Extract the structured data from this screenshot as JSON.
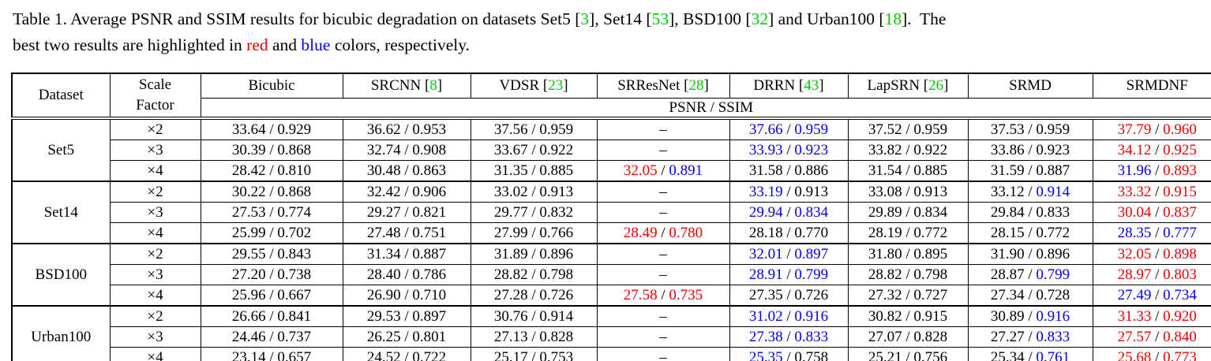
{
  "colors": {
    "text": "#000000",
    "best": "#ee0000",
    "second_best": "#0000ee",
    "citation_green": "#00cc00"
  },
  "caption": {
    "lines": [
      [
        {
          "text": "Table 1. Average PSNR and SSIM results for bicubic degradation on datasets Set5 [",
          "color": "black"
        },
        {
          "text": "3",
          "color": "green"
        },
        {
          "text": "], Set14 [",
          "color": "black"
        },
        {
          "text": "53",
          "color": "green"
        },
        {
          "text": "], BSD100 [",
          "color": "black"
        },
        {
          "text": "32",
          "color": "green"
        },
        {
          "text": "] and Urban100 [",
          "color": "black"
        },
        {
          "text": "18",
          "color": "green"
        },
        {
          "text": "].  The",
          "color": "black"
        }
      ],
      [
        {
          "text": "best two results are highlighted in ",
          "color": "black"
        },
        {
          "text": "red",
          "color": "red"
        },
        {
          "text": " and ",
          "color": "black"
        },
        {
          "text": "blue",
          "color": "blue"
        },
        {
          "text": " colors, respectively.",
          "color": "black"
        }
      ]
    ]
  },
  "table": {
    "corner_header": "Dataset",
    "scale_header_line1": "Scale",
    "scale_header_line2": "Factor",
    "metric_header": "PSNR / SSIM",
    "missing_value": "–",
    "method_columns": [
      {
        "name": "Bicubic",
        "cite": null
      },
      {
        "name": "SRCNN",
        "cite": "8"
      },
      {
        "name": "VDSR",
        "cite": "23"
      },
      {
        "name": "SRResNet",
        "cite": "28"
      },
      {
        "name": "DRRN",
        "cite": "43"
      },
      {
        "name": "LapSRN",
        "cite": "26"
      },
      {
        "name": "SRMD",
        "cite": null
      },
      {
        "name": "SRMDNF",
        "cite": null
      }
    ],
    "groups": [
      {
        "dataset": "Set5",
        "rows": [
          {
            "scale": "×2",
            "cells": [
              {
                "p": "33.64",
                "s": "0.929",
                "pc": "k",
                "sc": "k"
              },
              {
                "p": "36.62",
                "s": "0.953",
                "pc": "k",
                "sc": "k"
              },
              {
                "p": "37.56",
                "s": "0.959",
                "pc": "k",
                "sc": "k"
              },
              {
                "p": null,
                "s": null
              },
              {
                "p": "37.66",
                "s": "0.959",
                "pc": "b",
                "sc": "b"
              },
              {
                "p": "37.52",
                "s": "0.959",
                "pc": "k",
                "sc": "k"
              },
              {
                "p": "37.53",
                "s": "0.959",
                "pc": "k",
                "sc": "k"
              },
              {
                "p": "37.79",
                "s": "0.960",
                "pc": "r",
                "sc": "r"
              }
            ]
          },
          {
            "scale": "×3",
            "cells": [
              {
                "p": "30.39",
                "s": "0.868",
                "pc": "k",
                "sc": "k"
              },
              {
                "p": "32.74",
                "s": "0.908",
                "pc": "k",
                "sc": "k"
              },
              {
                "p": "33.67",
                "s": "0.922",
                "pc": "k",
                "sc": "k"
              },
              {
                "p": null,
                "s": null
              },
              {
                "p": "33.93",
                "s": "0.923",
                "pc": "b",
                "sc": "b"
              },
              {
                "p": "33.82",
                "s": "0.922",
                "pc": "k",
                "sc": "k"
              },
              {
                "p": "33.86",
                "s": "0.923",
                "pc": "k",
                "sc": "k"
              },
              {
                "p": "34.12",
                "s": "0.925",
                "pc": "r",
                "sc": "r"
              }
            ]
          },
          {
            "scale": "×4",
            "cells": [
              {
                "p": "28.42",
                "s": "0.810",
                "pc": "k",
                "sc": "k"
              },
              {
                "p": "30.48",
                "s": "0.863",
                "pc": "k",
                "sc": "k"
              },
              {
                "p": "31.35",
                "s": "0.885",
                "pc": "k",
                "sc": "k"
              },
              {
                "p": "32.05",
                "s": "0.891",
                "pc": "r",
                "sc": "b"
              },
              {
                "p": "31.58",
                "s": "0.886",
                "pc": "k",
                "sc": "k"
              },
              {
                "p": "31.54",
                "s": "0.885",
                "pc": "k",
                "sc": "k"
              },
              {
                "p": "31.59",
                "s": "0.887",
                "pc": "k",
                "sc": "k"
              },
              {
                "p": "31.96",
                "s": "0.893",
                "pc": "b",
                "sc": "r"
              }
            ]
          }
        ]
      },
      {
        "dataset": "Set14",
        "rows": [
          {
            "scale": "×2",
            "cells": [
              {
                "p": "30.22",
                "s": "0.868",
                "pc": "k",
                "sc": "k"
              },
              {
                "p": "32.42",
                "s": "0.906",
                "pc": "k",
                "sc": "k"
              },
              {
                "p": "33.02",
                "s": "0.913",
                "pc": "k",
                "sc": "k"
              },
              {
                "p": null,
                "s": null
              },
              {
                "p": "33.19",
                "s": "0.913",
                "pc": "b",
                "sc": "k"
              },
              {
                "p": "33.08",
                "s": "0.913",
                "pc": "k",
                "sc": "k"
              },
              {
                "p": "33.12",
                "s": "0.914",
                "pc": "k",
                "sc": "b"
              },
              {
                "p": "33.32",
                "s": "0.915",
                "pc": "r",
                "sc": "r"
              }
            ]
          },
          {
            "scale": "×3",
            "cells": [
              {
                "p": "27.53",
                "s": "0.774",
                "pc": "k",
                "sc": "k"
              },
              {
                "p": "29.27",
                "s": "0.821",
                "pc": "k",
                "sc": "k"
              },
              {
                "p": "29.77",
                "s": "0.832",
                "pc": "k",
                "sc": "k"
              },
              {
                "p": null,
                "s": null
              },
              {
                "p": "29.94",
                "s": "0.834",
                "pc": "b",
                "sc": "b"
              },
              {
                "p": "29.89",
                "s": "0.834",
                "pc": "k",
                "sc": "k"
              },
              {
                "p": "29.84",
                "s": "0.833",
                "pc": "k",
                "sc": "k"
              },
              {
                "p": "30.04",
                "s": "0.837",
                "pc": "r",
                "sc": "r"
              }
            ]
          },
          {
            "scale": "×4",
            "cells": [
              {
                "p": "25.99",
                "s": "0.702",
                "pc": "k",
                "sc": "k"
              },
              {
                "p": "27.48",
                "s": "0.751",
                "pc": "k",
                "sc": "k"
              },
              {
                "p": "27.99",
                "s": "0.766",
                "pc": "k",
                "sc": "k"
              },
              {
                "p": "28.49",
                "s": "0.780",
                "pc": "r",
                "sc": "r"
              },
              {
                "p": "28.18",
                "s": "0.770",
                "pc": "k",
                "sc": "k"
              },
              {
                "p": "28.19",
                "s": "0.772",
                "pc": "k",
                "sc": "k"
              },
              {
                "p": "28.15",
                "s": "0.772",
                "pc": "k",
                "sc": "k"
              },
              {
                "p": "28.35",
                "s": "0.777",
                "pc": "b",
                "sc": "b"
              }
            ]
          }
        ]
      },
      {
        "dataset": "BSD100",
        "rows": [
          {
            "scale": "×2",
            "cells": [
              {
                "p": "29.55",
                "s": "0.843",
                "pc": "k",
                "sc": "k"
              },
              {
                "p": "31.34",
                "s": "0.887",
                "pc": "k",
                "sc": "k"
              },
              {
                "p": "31.89",
                "s": "0.896",
                "pc": "k",
                "sc": "k"
              },
              {
                "p": null,
                "s": null
              },
              {
                "p": "32.01",
                "s": "0.897",
                "pc": "b",
                "sc": "b"
              },
              {
                "p": "31.80",
                "s": "0.895",
                "pc": "k",
                "sc": "k"
              },
              {
                "p": "31.90",
                "s": "0.896",
                "pc": "k",
                "sc": "k"
              },
              {
                "p": "32.05",
                "s": "0.898",
                "pc": "r",
                "sc": "r"
              }
            ]
          },
          {
            "scale": "×3",
            "cells": [
              {
                "p": "27.20",
                "s": "0.738",
                "pc": "k",
                "sc": "k"
              },
              {
                "p": "28.40",
                "s": "0.786",
                "pc": "k",
                "sc": "k"
              },
              {
                "p": "28.82",
                "s": "0.798",
                "pc": "k",
                "sc": "k"
              },
              {
                "p": null,
                "s": null
              },
              {
                "p": "28.91",
                "s": "0.799",
                "pc": "b",
                "sc": "b"
              },
              {
                "p": "28.82",
                "s": "0.798",
                "pc": "k",
                "sc": "k"
              },
              {
                "p": "28.87",
                "s": "0.799",
                "pc": "k",
                "sc": "b"
              },
              {
                "p": "28.97",
                "s": "0.803",
                "pc": "r",
                "sc": "r"
              }
            ]
          },
          {
            "scale": "×4",
            "cells": [
              {
                "p": "25.96",
                "s": "0.667",
                "pc": "k",
                "sc": "k"
              },
              {
                "p": "26.90",
                "s": "0.710",
                "pc": "k",
                "sc": "k"
              },
              {
                "p": "27.28",
                "s": "0.726",
                "pc": "k",
                "sc": "k"
              },
              {
                "p": "27.58",
                "s": "0.735",
                "pc": "r",
                "sc": "r"
              },
              {
                "p": "27.35",
                "s": "0.726",
                "pc": "k",
                "sc": "k"
              },
              {
                "p": "27.32",
                "s": "0.727",
                "pc": "k",
                "sc": "k"
              },
              {
                "p": "27.34",
                "s": "0.728",
                "pc": "k",
                "sc": "k"
              },
              {
                "p": "27.49",
                "s": "0.734",
                "pc": "b",
                "sc": "b"
              }
            ]
          }
        ]
      },
      {
        "dataset": "Urban100",
        "rows": [
          {
            "scale": "×2",
            "cells": [
              {
                "p": "26.66",
                "s": "0.841",
                "pc": "k",
                "sc": "k"
              },
              {
                "p": "29.53",
                "s": "0.897",
                "pc": "k",
                "sc": "k"
              },
              {
                "p": "30.76",
                "s": "0.914",
                "pc": "k",
                "sc": "k"
              },
              {
                "p": null,
                "s": null
              },
              {
                "p": "31.02",
                "s": "0.916",
                "pc": "b",
                "sc": "b"
              },
              {
                "p": "30.82",
                "s": "0.915",
                "pc": "k",
                "sc": "k"
              },
              {
                "p": "30.89",
                "s": "0.916",
                "pc": "k",
                "sc": "b"
              },
              {
                "p": "31.33",
                "s": "0.920",
                "pc": "r",
                "sc": "r"
              }
            ]
          },
          {
            "scale": "×3",
            "cells": [
              {
                "p": "24.46",
                "s": "0.737",
                "pc": "k",
                "sc": "k"
              },
              {
                "p": "26.25",
                "s": "0.801",
                "pc": "k",
                "sc": "k"
              },
              {
                "p": "27.13",
                "s": "0.828",
                "pc": "k",
                "sc": "k"
              },
              {
                "p": null,
                "s": null
              },
              {
                "p": "27.38",
                "s": "0.833",
                "pc": "b",
                "sc": "b"
              },
              {
                "p": "27.07",
                "s": "0.828",
                "pc": "k",
                "sc": "k"
              },
              {
                "p": "27.27",
                "s": "0.833",
                "pc": "k",
                "sc": "b"
              },
              {
                "p": "27.57",
                "s": "0.840",
                "pc": "r",
                "sc": "r"
              }
            ]
          },
          {
            "scale": "×4",
            "cells": [
              {
                "p": "23.14",
                "s": "0.657",
                "pc": "k",
                "sc": "k"
              },
              {
                "p": "24.52",
                "s": "0.722",
                "pc": "k",
                "sc": "k"
              },
              {
                "p": "25.17",
                "s": "0.753",
                "pc": "k",
                "sc": "k"
              },
              {
                "p": null,
                "s": null
              },
              {
                "p": "25.35",
                "s": "0.758",
                "pc": "b",
                "sc": "k"
              },
              {
                "p": "25.21",
                "s": "0.756",
                "pc": "k",
                "sc": "k"
              },
              {
                "p": "25.34",
                "s": "0.761",
                "pc": "k",
                "sc": "b"
              },
              {
                "p": "25.68",
                "s": "0.773",
                "pc": "r",
                "sc": "r"
              }
            ]
          }
        ]
      }
    ]
  }
}
